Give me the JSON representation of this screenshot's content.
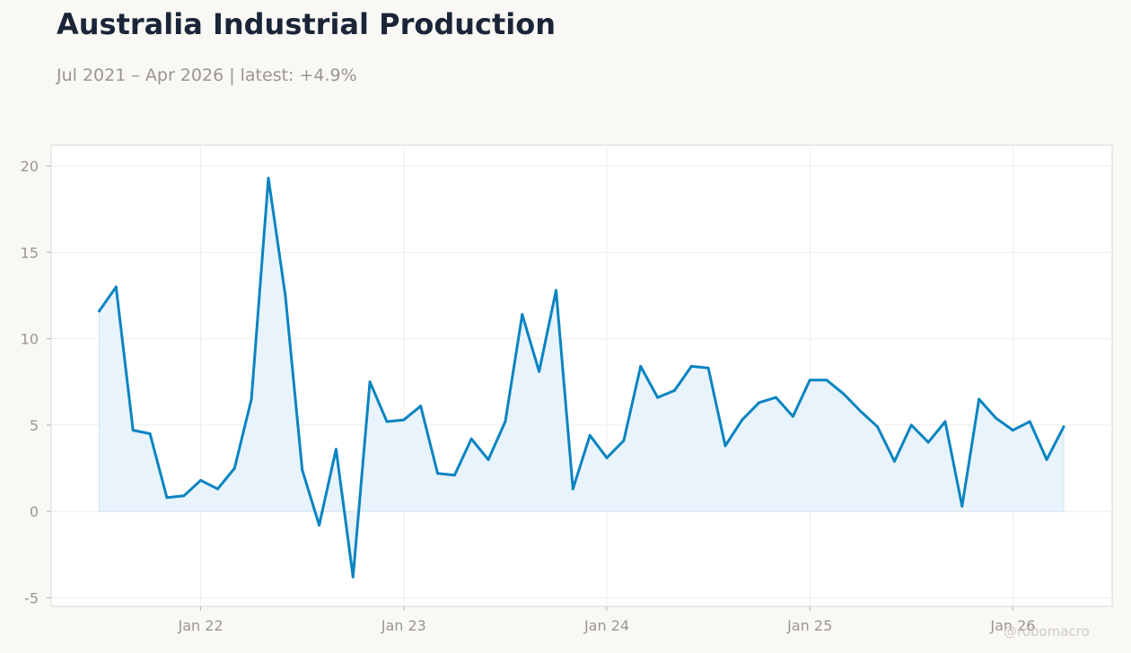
{
  "header": {
    "title": "Australia Industrial Production",
    "subtitle": "Jul 2021 – Apr 2026 | latest: +4.9%"
  },
  "watermark": "@robomacro",
  "colors": {
    "line": "#0a84c1",
    "fill": "#e9f3fb",
    "title": "#1b2538",
    "muted": "#9a9690",
    "background": "#f9f8f5",
    "plot_background": "#ffffff"
  },
  "chart_data": {
    "type": "area",
    "title": "Australia Industrial Production",
    "subtitle": "Jul 2021 – Apr 2026 | latest: +4.9%",
    "xlabel": "",
    "ylabel": "",
    "ylim": [
      -5.5,
      21.2
    ],
    "yticks": [
      -5,
      0,
      5,
      10,
      15,
      20
    ],
    "xticks": [
      {
        "date": "2022-01",
        "label": "Jan 22"
      },
      {
        "date": "2023-01",
        "label": "Jan 23"
      },
      {
        "date": "2024-01",
        "label": "Jan 24"
      },
      {
        "date": "2025-01",
        "label": "Jan 25"
      },
      {
        "date": "2026-01",
        "label": "Jan 26"
      }
    ],
    "grid": true,
    "legend": "none",
    "baseline": 0,
    "x": [
      "2021-07",
      "2021-08",
      "2021-09",
      "2021-10",
      "2021-11",
      "2021-12",
      "2022-01",
      "2022-02",
      "2022-03",
      "2022-04",
      "2022-05",
      "2022-06",
      "2022-07",
      "2022-08",
      "2022-09",
      "2022-10",
      "2022-11",
      "2022-12",
      "2023-01",
      "2023-02",
      "2023-03",
      "2023-04",
      "2023-05",
      "2023-06",
      "2023-07",
      "2023-08",
      "2023-09",
      "2023-10",
      "2023-11",
      "2023-12",
      "2024-01",
      "2024-02",
      "2024-03",
      "2024-04",
      "2024-05",
      "2024-06",
      "2024-07",
      "2024-08",
      "2024-09",
      "2024-10",
      "2024-11",
      "2024-12",
      "2025-01",
      "2025-02",
      "2025-03",
      "2025-04",
      "2025-05",
      "2025-06",
      "2025-07",
      "2025-08",
      "2025-09",
      "2025-10",
      "2025-11",
      "2025-12",
      "2026-01",
      "2026-02",
      "2026-03",
      "2026-04"
    ],
    "values": [
      11.6,
      13.0,
      4.7,
      4.5,
      0.8,
      0.9,
      1.8,
      1.3,
      2.5,
      6.5,
      19.3,
      12.5,
      2.4,
      -0.8,
      3.6,
      -3.8,
      7.5,
      5.2,
      5.3,
      6.1,
      2.2,
      2.1,
      4.2,
      3.0,
      5.2,
      11.4,
      8.1,
      12.8,
      1.3,
      4.4,
      3.1,
      4.1,
      8.4,
      6.6,
      7.0,
      8.4,
      8.3,
      3.8,
      5.3,
      6.3,
      6.6,
      5.5,
      7.6,
      7.6,
      6.8,
      5.8,
      4.9,
      2.9,
      5.0,
      4.0,
      5.2,
      0.3,
      6.5,
      5.4,
      4.7,
      5.2,
      3.0,
      4.9
    ]
  }
}
